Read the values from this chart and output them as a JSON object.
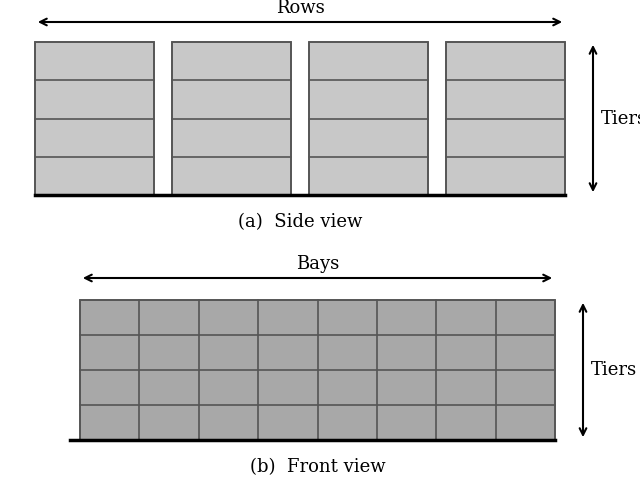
{
  "background_color": "#ffffff",
  "top_label": "Rows",
  "bottom_label": "Bays",
  "side_view_caption": "(a)  Side view",
  "front_view_caption": "(b)  Front view",
  "tiers_label": "Tiers",
  "side_num_rows": 4,
  "side_num_tiers": 4,
  "front_num_bays": 8,
  "front_num_tiers": 4,
  "side_cell_color": "#c8c8c8",
  "front_cell_color": "#a8a8a8",
  "cell_edge_color": "#555555",
  "font_size_label": 13,
  "font_size_caption": 13,
  "font_size_tiers": 13
}
